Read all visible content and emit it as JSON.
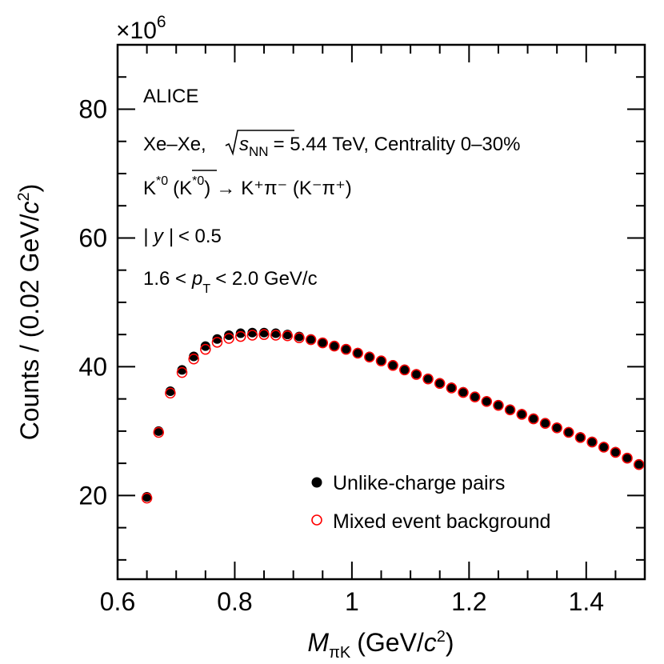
{
  "chart_data": {
    "type": "scatter",
    "title": "",
    "xlabel": "M_πK (GeV/c²)",
    "ylabel": "Counts / (0.02 GeV/c²)",
    "xlim": [
      0.6,
      1.5
    ],
    "ylim": [
      7,
      90
    ],
    "y_multiplier": "×10^6",
    "x_ticks": [
      0.6,
      0.8,
      1.0,
      1.2,
      1.4
    ],
    "x_tick_labels": [
      "0.6",
      "0.8",
      "1",
      "1.2",
      "1.4"
    ],
    "y_ticks": [
      20,
      40,
      60,
      80
    ],
    "y_tick_labels": [
      "20",
      "40",
      "60",
      "80"
    ],
    "x": [
      0.65,
      0.67,
      0.69,
      0.71,
      0.73,
      0.75,
      0.77,
      0.79,
      0.81,
      0.83,
      0.85,
      0.87,
      0.89,
      0.91,
      0.93,
      0.95,
      0.97,
      0.99,
      1.01,
      1.03,
      1.05,
      1.07,
      1.09,
      1.11,
      1.13,
      1.15,
      1.17,
      1.19,
      1.21,
      1.23,
      1.25,
      1.27,
      1.29,
      1.31,
      1.33,
      1.35,
      1.37,
      1.39,
      1.41,
      1.43,
      1.45,
      1.47,
      1.49
    ],
    "series": [
      {
        "name": "Unlike-charge pairs",
        "marker": "filled-circle",
        "color": "#000000",
        "values": [
          19.8,
          30.0,
          36.2,
          39.5,
          41.6,
          43.2,
          44.3,
          44.9,
          45.2,
          45.3,
          45.3,
          45.2,
          45.0,
          44.7,
          44.3,
          43.8,
          43.3,
          42.8,
          42.2,
          41.6,
          41.0,
          40.3,
          39.6,
          38.9,
          38.2,
          37.5,
          36.8,
          36.1,
          35.4,
          34.7,
          34.1,
          33.4,
          32.7,
          32.0,
          31.3,
          30.6,
          29.9,
          29.1,
          28.4,
          27.6,
          26.8,
          25.9,
          24.9
        ]
      },
      {
        "name": "Mixed event background",
        "marker": "open-circle",
        "color": "#ff0000",
        "values": [
          19.6,
          29.8,
          35.9,
          39.1,
          41.2,
          42.7,
          43.8,
          44.4,
          44.7,
          44.9,
          45.0,
          44.9,
          44.8,
          44.5,
          44.2,
          43.7,
          43.2,
          42.7,
          42.1,
          41.5,
          40.9,
          40.2,
          39.5,
          38.8,
          38.1,
          37.4,
          36.7,
          36.0,
          35.3,
          34.6,
          34.0,
          33.3,
          32.6,
          31.9,
          31.2,
          30.5,
          29.8,
          29.0,
          28.3,
          27.5,
          26.7,
          25.8,
          24.8
        ]
      }
    ],
    "legend_position": "bottom-right",
    "annotations": {
      "experiment": "ALICE",
      "system": "Xe–Xe,",
      "energy_symbol": "s",
      "energy_sub": "NN",
      "energy_value": "= 5.44 TeV, Centrality 0–30%",
      "decay_k": "K",
      "decay_k_sup": "*0",
      "decay_kbar": "K",
      "decay_kbar_sup": "*0",
      "decay_arrow": "→",
      "decay_products": "K⁺π⁻ (K⁻π⁺)",
      "rapidity_prefix": "| y |",
      "rapidity_value": "< 0.5",
      "pt_prefix": "1.6 <",
      "pt_symbol": "p",
      "pt_sub": "T",
      "pt_value": "< 2.0 GeV/c"
    }
  }
}
